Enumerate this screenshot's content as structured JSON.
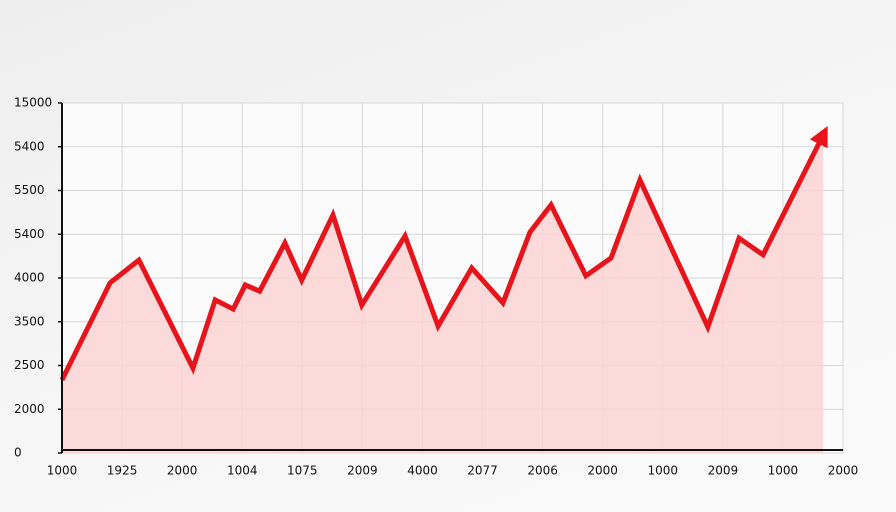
{
  "chart_data": {
    "type": "line",
    "color": "#e8141b",
    "fill_color": "#fcd3d3",
    "grid": true,
    "xlim": [
      0,
      13
    ],
    "xticks": [
      {
        "value": 0,
        "label": "1000"
      },
      {
        "value": 1,
        "label": "1925"
      },
      {
        "value": 2,
        "label": "2000"
      },
      {
        "value": 3,
        "label": "1004"
      },
      {
        "value": 4,
        "label": "1075"
      },
      {
        "value": 5,
        "label": "2009"
      },
      {
        "value": 6,
        "label": "4000"
      },
      {
        "value": 7,
        "label": "2077"
      },
      {
        "value": 8,
        "label": "2006"
      },
      {
        "value": 9,
        "label": "2000"
      },
      {
        "value": 10,
        "label": "1000"
      },
      {
        "value": 11,
        "label": "2009"
      },
      {
        "value": 12,
        "label": "1000"
      },
      {
        "value": 13,
        "label": "2000"
      }
    ],
    "ylim": [
      0,
      8
    ],
    "yticks": [
      0,
      {
        "value": 1,
        "label": "2000"
      },
      {
        "value": 2,
        "label": "2500"
      },
      {
        "value": 3,
        "label": "3500"
      },
      {
        "value": 4,
        "label": "4000"
      },
      {
        "value": 5,
        "label": "5400"
      },
      {
        "value": 6,
        "label": "5500"
      },
      {
        "value": 7,
        "label": "5400"
      },
      {
        "value": 8,
        "label": "15000"
      }
    ],
    "x": [
      0,
      0.8,
      1.28,
      2.18,
      2.55,
      2.85,
      3.05,
      3.29,
      3.71,
      3.99,
      4.51,
      4.99,
      5.71,
      6.26,
      6.82,
      7.34,
      7.79,
      8.14,
      8.72,
      9.14,
      9.62,
      10.75,
      11.27,
      11.67,
      12.67
    ],
    "values": [
      1.67,
      3.89,
      4.41,
      1.94,
      3.5,
      3.29,
      3.84,
      3.7,
      4.8,
      3.95,
      5.44,
      3.38,
      4.96,
      2.9,
      4.23,
      3.43,
      5.05,
      5.67,
      4.05,
      4.46,
      6.24,
      2.88,
      4.91,
      4.53,
      7.27
    ]
  }
}
